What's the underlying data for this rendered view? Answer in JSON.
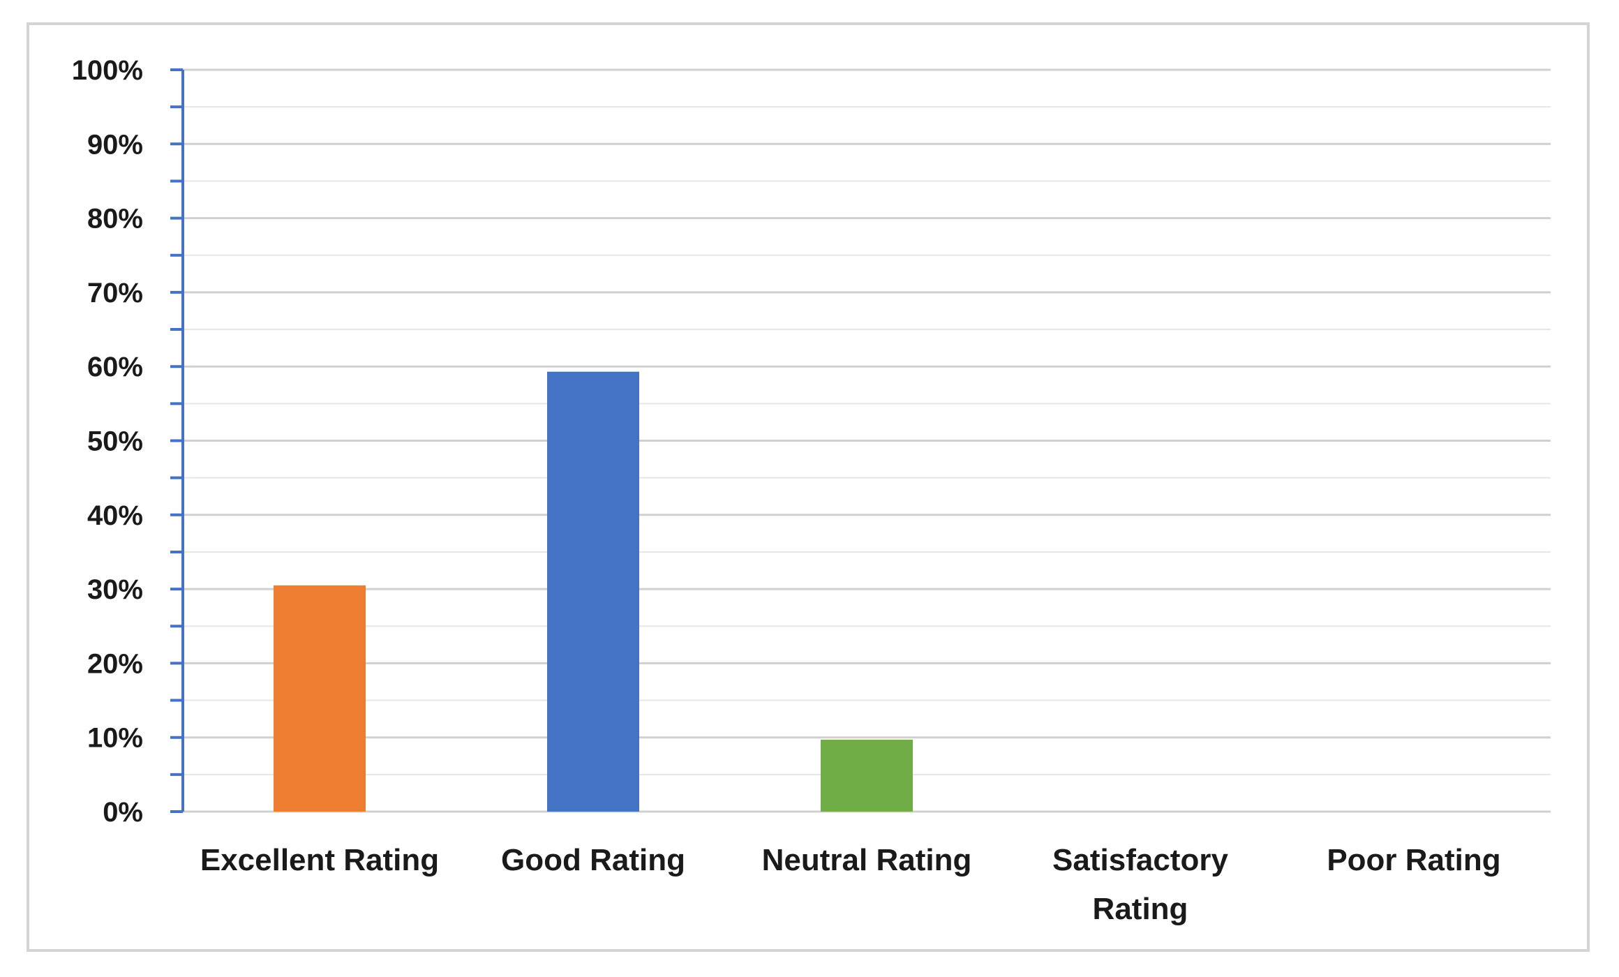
{
  "chart_data": {
    "type": "bar",
    "categories": [
      "Excellent Rating",
      "Good Rating",
      "Neutral Rating",
      "Satisfactory Rating",
      "Poor Rating"
    ],
    "category_lines": [
      [
        "Excellent Rating"
      ],
      [
        "Good Rating"
      ],
      [
        "Neutral Rating"
      ],
      [
        "Satisfactory",
        "Rating"
      ],
      [
        "Poor Rating"
      ]
    ],
    "values": [
      30.5,
      59.3,
      9.7,
      0,
      0
    ],
    "colors": [
      "#ed7d31",
      "#4472c4",
      "#70ad47",
      "#a5a5a5",
      "#ffc000"
    ],
    "ylim": [
      0,
      100
    ],
    "yticks": [
      0,
      10,
      20,
      30,
      40,
      50,
      60,
      70,
      80,
      90,
      100
    ],
    "ytick_labels": [
      "0%",
      "10%",
      "20%",
      "30%",
      "40%",
      "50%",
      "60%",
      "70%",
      "80%",
      "90%",
      "100%"
    ],
    "title": "",
    "xlabel": "",
    "ylabel": "",
    "grid": true,
    "minor_grid": true,
    "axis_color": "#4472c4",
    "grid_color": "#d9d9d9"
  }
}
